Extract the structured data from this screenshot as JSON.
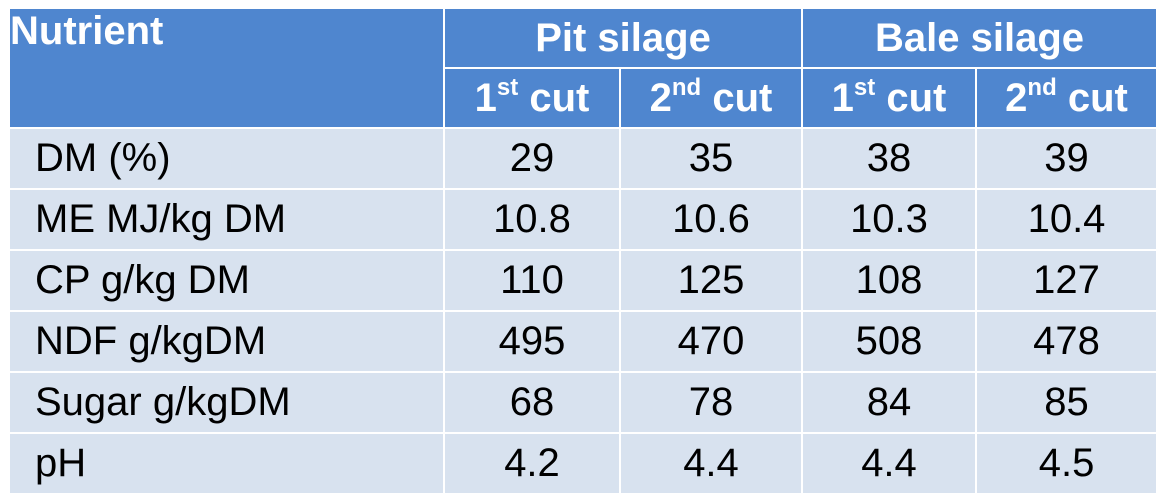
{
  "table": {
    "header": {
      "nutrient": "Nutrient",
      "groups": [
        {
          "label": "Pit silage",
          "cuts": [
            {
              "ordinal": "1",
              "suffix": "st",
              "word": "cut"
            },
            {
              "ordinal": "2",
              "suffix": "nd",
              "word": "cut"
            }
          ]
        },
        {
          "label": "Bale silage",
          "cuts": [
            {
              "ordinal": "1",
              "suffix": "st",
              "word": "cut"
            },
            {
              "ordinal": "2",
              "suffix": "nd",
              "word": "cut"
            }
          ]
        }
      ]
    },
    "rows": [
      {
        "label": "DM (%)",
        "values": [
          "29",
          "35",
          "38",
          "39"
        ]
      },
      {
        "label": "ME MJ/kg DM",
        "values": [
          "10.8",
          "10.6",
          "10.3",
          "10.4"
        ]
      },
      {
        "label": "CP g/kg DM",
        "values": [
          "110",
          "125",
          "108",
          "127"
        ]
      },
      {
        "label": "NDF g/kgDM",
        "values": [
          "495",
          "470",
          "508",
          "478"
        ]
      },
      {
        "label": "Sugar g/kgDM",
        "values": [
          "68",
          "78",
          "84",
          "85"
        ]
      },
      {
        "label": "pH",
        "values": [
          "4.2",
          "4.4",
          "4.4",
          "4.5"
        ]
      }
    ]
  },
  "colors": {
    "header_bg": "#4f86cf",
    "row_bg": "#d8e2ef",
    "header_text": "#ffffff",
    "body_text": "#000000"
  }
}
